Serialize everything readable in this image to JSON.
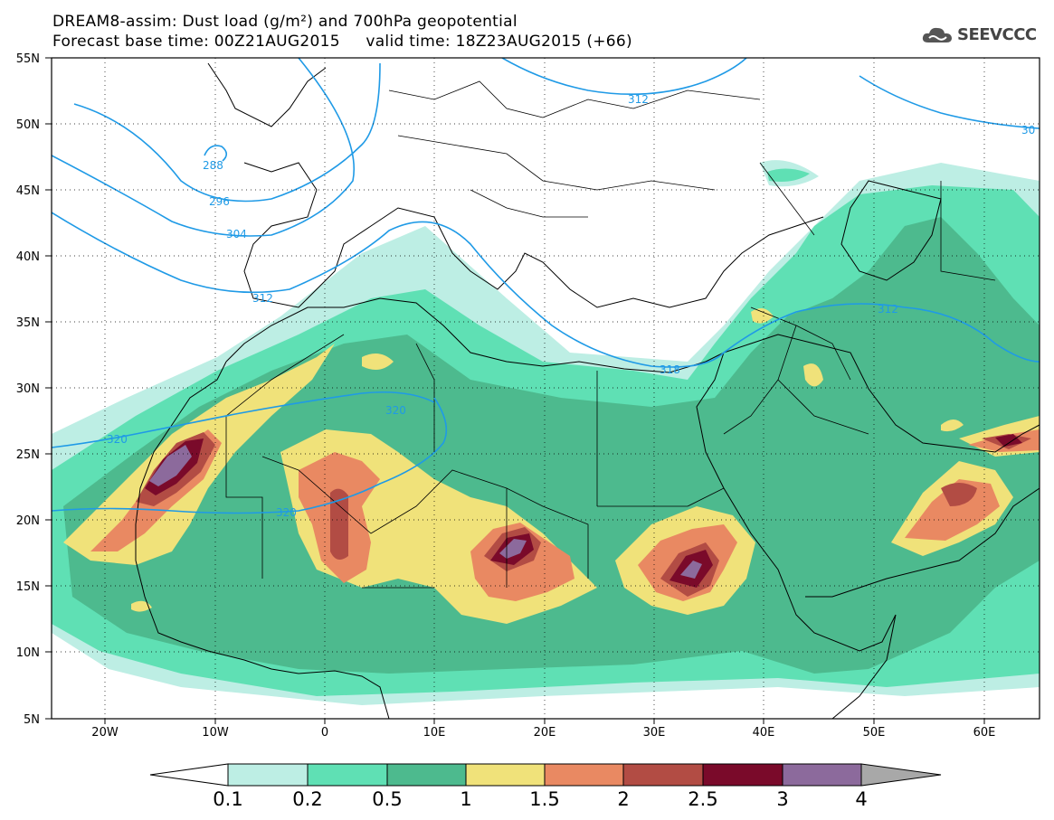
{
  "title": {
    "line1": "DREAM8-assim: Dust load (g/m²) and 700hPa geopotential",
    "line2": "Forecast base time: 00Z21AUG2015     valid time: 18Z23AUG2015 (+66)"
  },
  "logo": {
    "text": "SEEVCCC",
    "icon": "cloud-icon"
  },
  "map": {
    "lon_ticks": [
      "20W",
      "10W",
      "0",
      "10E",
      "20E",
      "30E",
      "40E",
      "50E",
      "60E"
    ],
    "lat_ticks": [
      "55N",
      "50N",
      "45N",
      "40N",
      "35N",
      "30N",
      "25N",
      "20N",
      "15N",
      "10N",
      "5N"
    ],
    "contour_labels": [
      "288",
      "296",
      "304",
      "312",
      "312",
      "318",
      "312",
      "30",
      "320",
      "320",
      "320"
    ]
  },
  "colorbar": {
    "labels": [
      "0.1",
      "0.2",
      "0.5",
      "1",
      "1.5",
      "2",
      "2.5",
      "3",
      "4"
    ],
    "colors": [
      "#bdeee4",
      "#5fe0b4",
      "#4dba8e",
      "#f0e27a",
      "#e98962",
      "#b24c44",
      "#7a0a2a",
      "#8c6a9c",
      "#a8a8a8"
    ]
  }
}
